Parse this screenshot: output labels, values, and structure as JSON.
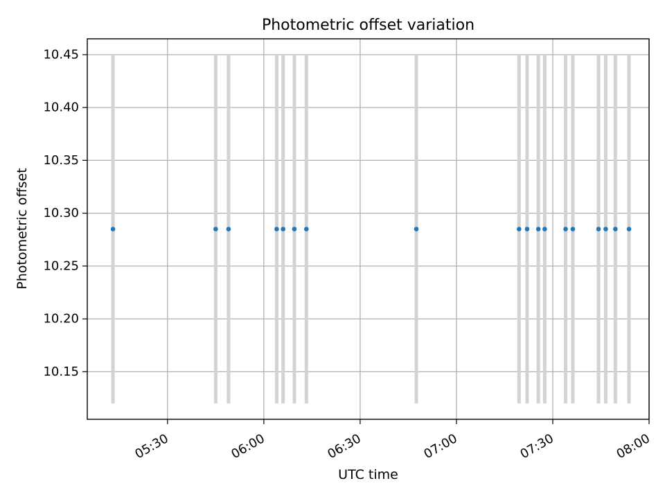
{
  "chart_data": {
    "type": "scatter",
    "title": "Photometric offset variation",
    "xlabel": "UTC time",
    "ylabel": "Photometric offset",
    "grid": true,
    "x_unit": "UTC time of day",
    "xlim": [
      "05:05",
      "08:00"
    ],
    "ylim": [
      10.105,
      10.465
    ],
    "xticks": [
      "05:30",
      "06:00",
      "06:30",
      "07:00",
      "07:30",
      "08:00"
    ],
    "yticks": [
      "10.15",
      "10.20",
      "10.25",
      "10.30",
      "10.35",
      "10.40",
      "10.45"
    ],
    "points": [
      {
        "x": "05:13:00",
        "y": 10.285,
        "ymin": 10.12,
        "ymax": 10.45
      },
      {
        "x": "05:45:00",
        "y": 10.285,
        "ymin": 10.12,
        "ymax": 10.45
      },
      {
        "x": "05:49:00",
        "y": 10.285,
        "ymin": 10.12,
        "ymax": 10.45
      },
      {
        "x": "06:04:00",
        "y": 10.285,
        "ymin": 10.12,
        "ymax": 10.45
      },
      {
        "x": "06:06:00",
        "y": 10.285,
        "ymin": 10.12,
        "ymax": 10.45
      },
      {
        "x": "06:09:30",
        "y": 10.285,
        "ymin": 10.12,
        "ymax": 10.45
      },
      {
        "x": "06:13:15",
        "y": 10.285,
        "ymin": 10.12,
        "ymax": 10.45
      },
      {
        "x": "06:47:30",
        "y": 10.285,
        "ymin": 10.12,
        "ymax": 10.45
      },
      {
        "x": "07:19:30",
        "y": 10.285,
        "ymin": 10.12,
        "ymax": 10.45
      },
      {
        "x": "07:22:00",
        "y": 10.285,
        "ymin": 10.12,
        "ymax": 10.45
      },
      {
        "x": "07:25:30",
        "y": 10.285,
        "ymin": 10.12,
        "ymax": 10.45
      },
      {
        "x": "07:27:30",
        "y": 10.285,
        "ymin": 10.12,
        "ymax": 10.45
      },
      {
        "x": "07:34:00",
        "y": 10.285,
        "ymin": 10.12,
        "ymax": 10.45
      },
      {
        "x": "07:36:15",
        "y": 10.285,
        "ymin": 10.12,
        "ymax": 10.45
      },
      {
        "x": "07:44:15",
        "y": 10.285,
        "ymin": 10.12,
        "ymax": 10.45
      },
      {
        "x": "07:46:30",
        "y": 10.285,
        "ymin": 10.12,
        "ymax": 10.45
      },
      {
        "x": "07:49:30",
        "y": 10.285,
        "ymin": 10.12,
        "ymax": 10.45
      },
      {
        "x": "07:53:45",
        "y": 10.285,
        "ymin": 10.12,
        "ymax": 10.45
      }
    ],
    "colors": {
      "point": "#1f77b4",
      "error_bar": "#d3d3d3",
      "grid": "#b0b0b0",
      "axes": "#000000"
    }
  }
}
